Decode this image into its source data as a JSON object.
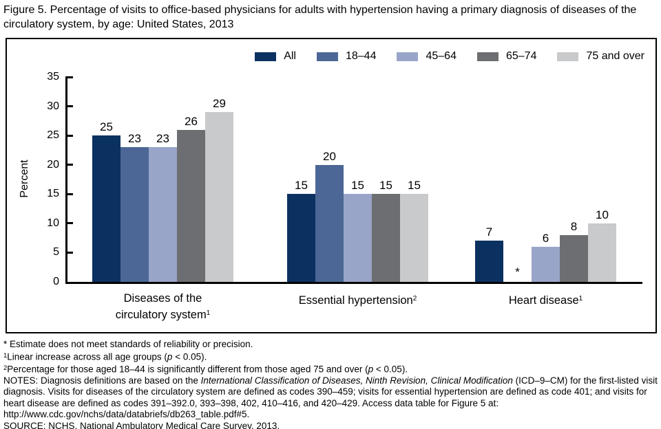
{
  "title": "Figure 5. Percentage of visits to office-based physicians for adults with hypertension having a primary diagnosis of diseases of the circulatory system, by age: United States, 2013",
  "chart_data": {
    "type": "bar",
    "title": "Percentage of visits to office-based physicians for adults with hypertension having a primary diagnosis of diseases of the circulatory system, by age: United States, 2013",
    "xlabel": "",
    "ylabel": "Percent",
    "ylim": [
      0,
      35
    ],
    "ytick_step": 5,
    "grid": false,
    "legend_position": "top-right",
    "missing_marker": "*",
    "categories": [
      {
        "lines": [
          "Diseases of the",
          "circulatory system"
        ],
        "sup": "1"
      },
      {
        "lines": [
          "Essential hypertension"
        ],
        "sup": "2"
      },
      {
        "lines": [
          "Heart disease"
        ],
        "sup": "1"
      }
    ],
    "series": [
      {
        "name": "All",
        "color": "#0b3161",
        "values": [
          25,
          15,
          7
        ]
      },
      {
        "name": "18–44",
        "color": "#4c6795",
        "values": [
          23,
          20,
          null
        ]
      },
      {
        "name": "45–64",
        "color": "#99a5c8",
        "values": [
          23,
          15,
          6
        ]
      },
      {
        "name": "65–74",
        "color": "#6d6e71",
        "values": [
          26,
          15,
          8
        ]
      },
      {
        "name": "75 and over",
        "color": "#c9cacc",
        "values": [
          29,
          15,
          10
        ]
      }
    ]
  },
  "footnotes": [
    {
      "name": "asterisk-note",
      "segments": [
        {
          "t": "* Estimate does not meet standards of reliability or precision."
        }
      ]
    },
    {
      "name": "footnote-1",
      "segments": [
        {
          "t": "1",
          "sup": true
        },
        {
          "t": "Linear increase across all age groups ("
        },
        {
          "t": "p",
          "i": true
        },
        {
          "t": " < 0.05)."
        }
      ]
    },
    {
      "name": "footnote-2",
      "segments": [
        {
          "t": "2",
          "sup": true
        },
        {
          "t": "Percentage for those aged 18–44 is significantly different from those aged 75 and over ("
        },
        {
          "t": "p",
          "i": true
        },
        {
          "t": " < 0.05)."
        }
      ]
    },
    {
      "name": "notes",
      "segments": [
        {
          "t": "NOTES: Diagnosis definitions are based on the "
        },
        {
          "t": "International Classification of Diseases, Ninth Revision, Clinical Modification",
          "i": true
        },
        {
          "t": " (ICD–9–CM) for the first-listed visit diagnosis. Visits for diseases of the circulatory system are defined as codes 390–459; visits for essential hypertension are defined as code 401; and visits for heart disease are defined as codes 391–392.0, 393–398, 402, 410–416, and 420–429. Access data table for Figure 5 at: http://www.cdc.gov/nchs/data/databriefs/db263_table.pdf#5."
        }
      ]
    },
    {
      "name": "source",
      "segments": [
        {
          "t": "SOURCE: NCHS, National Ambulatory Medical Care Survey, 2013."
        }
      ]
    }
  ]
}
